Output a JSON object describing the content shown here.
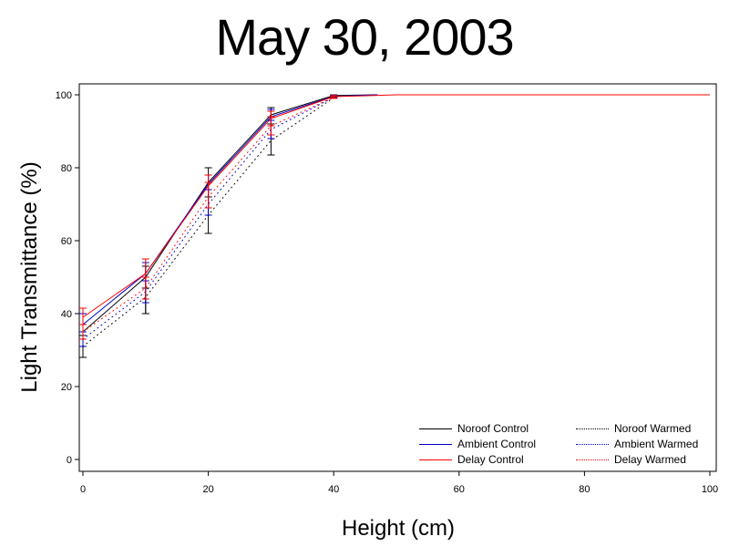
{
  "chart_data": {
    "type": "line",
    "title": "May 30, 2003",
    "xlabel": "Height (cm)",
    "ylabel": "Light Transmittance (%)",
    "xlim": [
      0,
      100
    ],
    "ylim": [
      0,
      100
    ],
    "xticks": [
      0,
      20,
      40,
      60,
      80,
      100
    ],
    "yticks": [
      0,
      20,
      40,
      60,
      80,
      100
    ],
    "grid": false,
    "legend_position": "bottom-right",
    "series": [
      {
        "name": "Noroof Control",
        "color": "#000000",
        "style": "solid",
        "x": [
          0,
          10,
          20,
          30,
          40,
          47
        ],
        "y": [
          35,
          50,
          76,
          94.5,
          99.8,
          100
        ],
        "err_low": [
          28,
          40,
          69,
          92,
          99.5,
          100
        ],
        "err_high": [
          40,
          53,
          80,
          96.5,
          100,
          100
        ]
      },
      {
        "name": "Ambient Control",
        "color": "#0000cc",
        "style": "solid",
        "x": [
          0,
          10,
          20,
          30,
          40,
          47
        ],
        "y": [
          37,
          51,
          75.5,
          94,
          99.6,
          100
        ],
        "err_low": [
          33,
          47,
          72,
          92,
          99.3,
          100
        ],
        "err_high": [
          40,
          54,
          78,
          96,
          99.9,
          100
        ]
      },
      {
        "name": "Delay Control",
        "color": "#ff0000",
        "style": "solid",
        "x": [
          0,
          10,
          20,
          30,
          40,
          50,
          100
        ],
        "y": [
          39,
          51,
          75,
          93.5,
          99.5,
          100,
          100
        ],
        "err_low": [
          35,
          47,
          72,
          91.5,
          99.2,
          100,
          100
        ],
        "err_high": [
          41.5,
          55,
          78,
          95.5,
          99.8,
          100,
          100
        ]
      },
      {
        "name": "Noroof Warmed",
        "color": "#000000",
        "style": "dotted",
        "x": [
          0,
          10,
          20,
          30,
          40
        ],
        "y": [
          31,
          44.5,
          67,
          87.5,
          99.2
        ],
        "err_low": [
          28,
          40,
          62,
          83.5,
          99
        ],
        "err_high": [
          34,
          47,
          72,
          92,
          99.5
        ]
      },
      {
        "name": "Ambient Warmed",
        "color": "#0000cc",
        "style": "dotted",
        "x": [
          0,
          10,
          20,
          30,
          40
        ],
        "y": [
          33,
          46,
          70,
          90.5,
          99.3
        ],
        "err_low": [
          31,
          43,
          67,
          88,
          99
        ],
        "err_high": [
          35,
          49,
          74,
          93,
          99.6
        ]
      },
      {
        "name": "Delay Warmed",
        "color": "#ff0000",
        "style": "dotted",
        "x": [
          0,
          10,
          20,
          30,
          40
        ],
        "y": [
          35,
          47,
          72,
          91.5,
          99.3
        ],
        "err_low": [
          33,
          44,
          69,
          89,
          99
        ],
        "err_high": [
          37,
          50,
          76,
          94,
          99.6
        ]
      }
    ]
  },
  "legend": {
    "items": [
      {
        "label": "Noroof Control",
        "color": "#000000",
        "style": "solid"
      },
      {
        "label": "Noroof Warmed",
        "color": "#000000",
        "style": "dotted"
      },
      {
        "label": "Ambient Control",
        "color": "#0000cc",
        "style": "solid"
      },
      {
        "label": "Ambient Warmed",
        "color": "#0000cc",
        "style": "dotted"
      },
      {
        "label": "Delay Control",
        "color": "#ff0000",
        "style": "solid"
      },
      {
        "label": "Delay Warmed",
        "color": "#ff0000",
        "style": "dotted"
      }
    ]
  }
}
